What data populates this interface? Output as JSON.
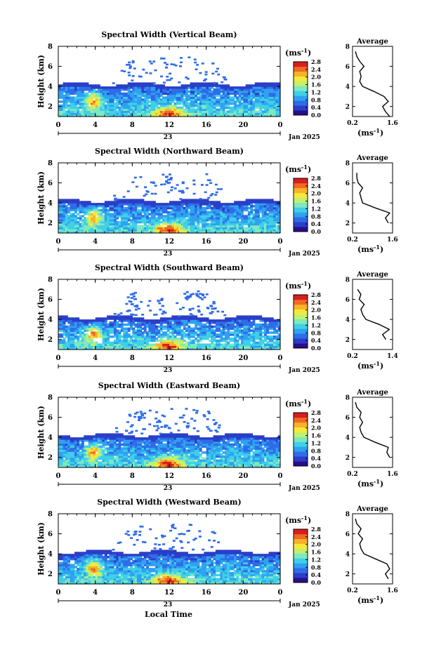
{
  "figure": {
    "xlabel": "Local Time",
    "date_label": "Jan 2025",
    "day_label": "23",
    "colorbar_unit_base": "(ms",
    "colorbar_unit_exp": "-1",
    "colorbar_unit_close": ")",
    "avg_title": "Average",
    "avg_unit_base": "(ms",
    "avg_unit_exp": "-1",
    "avg_unit_close": ")",
    "colors": {
      "ramp": [
        "#2b0d8a",
        "#2a3ec8",
        "#2f6ce8",
        "#2fa2f0",
        "#3fd0e8",
        "#7ee8c0",
        "#c2f06e",
        "#f6e83a",
        "#f7b22a",
        "#f06a22",
        "#d81e1e"
      ],
      "noise": "#2f6ce8"
    }
  },
  "chart_data": [
    {
      "type": "heatmap",
      "title": "Spectral Width (Vertical Beam)",
      "ylabel": "Height (km)",
      "xlim": [
        0,
        24
      ],
      "ylim": [
        1,
        8
      ],
      "x_ticks": [
        "0",
        "4",
        "8",
        "12",
        "16",
        "20",
        "0"
      ],
      "y_ticks": [
        "2",
        "4",
        "6",
        "8"
      ],
      "colorbar": {
        "range": [
          0,
          2.8
        ],
        "tick_labels": [
          "0.0",
          "0.4",
          "0.8",
          "1.2",
          "1.6",
          "2.0",
          "2.4",
          "2.8"
        ]
      },
      "profile": {
        "title": "Average",
        "xlim": [
          0.2,
          1.6
        ],
        "x_ticks": [
          "0.2",
          "1.6"
        ],
        "ylim": [
          1,
          8
        ],
        "y_ticks": [
          "2",
          "4",
          "6",
          "8"
        ],
        "height_km": [
          1.0,
          1.5,
          2.0,
          2.5,
          3.0,
          3.5,
          4.0,
          4.5,
          5.0,
          5.5,
          6.0,
          6.5,
          7.0,
          7.5
        ],
        "width_ms": [
          1.5,
          1.35,
          1.25,
          1.45,
          1.3,
          0.95,
          0.55,
          0.45,
          0.5,
          0.45,
          0.6,
          0.45,
          0.35,
          0.3
        ]
      }
    },
    {
      "type": "heatmap",
      "title": "Spectral Width (Northward Beam)",
      "ylabel": "Height (km)",
      "xlim": [
        0,
        24
      ],
      "ylim": [
        1,
        8
      ],
      "x_ticks": [
        "0",
        "4",
        "8",
        "12",
        "16",
        "20",
        "0"
      ],
      "y_ticks": [
        "2",
        "4",
        "6",
        "8"
      ],
      "colorbar": {
        "range": [
          0,
          2.8
        ],
        "tick_labels": [
          "0.0",
          "0.4",
          "0.8",
          "1.2",
          "1.6",
          "2.0",
          "2.4",
          "2.8"
        ]
      },
      "profile": {
        "title": "Average",
        "xlim": [
          0.2,
          1.6
        ],
        "x_ticks": [
          "0.2",
          "1.6"
        ],
        "ylim": [
          1,
          8
        ],
        "y_ticks": [
          "2",
          "4",
          "6",
          "8"
        ],
        "height_km": [
          2.0,
          2.5,
          3.0,
          3.5,
          4.0,
          4.5,
          5.0,
          5.5,
          6.0,
          6.5,
          7.0
        ],
        "width_ms": [
          1.45,
          1.35,
          1.5,
          1.0,
          0.55,
          0.5,
          0.45,
          0.55,
          0.4,
          0.35,
          0.35
        ]
      }
    },
    {
      "type": "heatmap",
      "title": "Spectral Width (Southward Beam)",
      "ylabel": "Height (km)",
      "xlim": [
        0,
        24
      ],
      "ylim": [
        1,
        8
      ],
      "x_ticks": [
        "0",
        "4",
        "8",
        "12",
        "16",
        "20",
        "0"
      ],
      "y_ticks": [
        "2",
        "4",
        "6",
        "8"
      ],
      "colorbar": {
        "range": [
          0,
          2.8
        ],
        "tick_labels": [
          "0.0",
          "0.4",
          "0.8",
          "1.2",
          "1.6",
          "2.0",
          "2.4",
          "2.8"
        ]
      },
      "profile": {
        "title": "Average",
        "xlim": [
          0.2,
          1.4
        ],
        "x_ticks": [
          "0.2",
          "1.4"
        ],
        "ylim": [
          1,
          8
        ],
        "y_ticks": [
          "2",
          "4",
          "6",
          "8"
        ],
        "height_km": [
          2.0,
          2.5,
          3.0,
          3.5,
          4.0,
          4.5,
          5.0,
          5.5,
          6.0,
          6.5,
          7.0
        ],
        "width_ms": [
          1.2,
          1.1,
          1.3,
          1.0,
          0.6,
          0.5,
          0.45,
          0.55,
          0.4,
          0.45,
          0.35
        ]
      }
    },
    {
      "type": "heatmap",
      "title": "Spectral Width (Eastward Beam)",
      "ylabel": "Height (km)",
      "xlim": [
        0,
        24
      ],
      "ylim": [
        1,
        8
      ],
      "x_ticks": [
        "0",
        "4",
        "8",
        "12",
        "16",
        "20",
        "0"
      ],
      "y_ticks": [
        "2",
        "4",
        "6",
        "8"
      ],
      "colorbar": {
        "range": [
          0,
          2.8
        ],
        "tick_labels": [
          "0.0",
          "0.4",
          "0.8",
          "1.2",
          "1.6",
          "2.0",
          "2.4",
          "2.8"
        ]
      },
      "profile": {
        "title": "Average",
        "xlim": [
          0.2,
          1.6
        ],
        "x_ticks": [
          "0.2",
          "1.6"
        ],
        "ylim": [
          1,
          8
        ],
        "y_ticks": [
          "2",
          "4",
          "6",
          "8"
        ],
        "height_km": [
          2.0,
          2.5,
          3.0,
          3.5,
          4.0,
          4.5,
          5.0,
          5.5,
          6.0,
          6.5,
          7.0,
          7.5
        ],
        "width_ms": [
          1.5,
          1.4,
          1.45,
          1.0,
          0.6,
          0.5,
          0.45,
          0.55,
          0.45,
          0.5,
          0.35,
          0.3
        ]
      }
    },
    {
      "type": "heatmap",
      "title": "Spectral Width (Westward Beam)",
      "ylabel": "Height (km)",
      "xlim": [
        0,
        24
      ],
      "ylim": [
        1,
        8
      ],
      "x_ticks": [
        "0",
        "4",
        "8",
        "12",
        "16",
        "20",
        "0"
      ],
      "y_ticks": [
        "2",
        "4",
        "6",
        "8"
      ],
      "colorbar": {
        "range": [
          0,
          2.8
        ],
        "tick_labels": [
          "0.0",
          "0.4",
          "0.8",
          "1.2",
          "1.6",
          "2.0",
          "2.4",
          "2.8"
        ]
      },
      "profile": {
        "title": "Average",
        "xlim": [
          0.2,
          1.6
        ],
        "x_ticks": [
          "0.2",
          "1.6"
        ],
        "ylim": [
          1,
          8
        ],
        "y_ticks": [
          "2",
          "4",
          "6",
          "8"
        ],
        "height_km": [
          1.5,
          2.0,
          2.5,
          3.0,
          3.5,
          4.0,
          4.5,
          5.0,
          5.5,
          6.0,
          6.5,
          7.0,
          7.5
        ],
        "width_ms": [
          1.45,
          1.35,
          1.5,
          1.4,
          1.0,
          0.6,
          0.5,
          0.45,
          0.55,
          0.4,
          0.5,
          0.35,
          0.3
        ]
      }
    }
  ]
}
